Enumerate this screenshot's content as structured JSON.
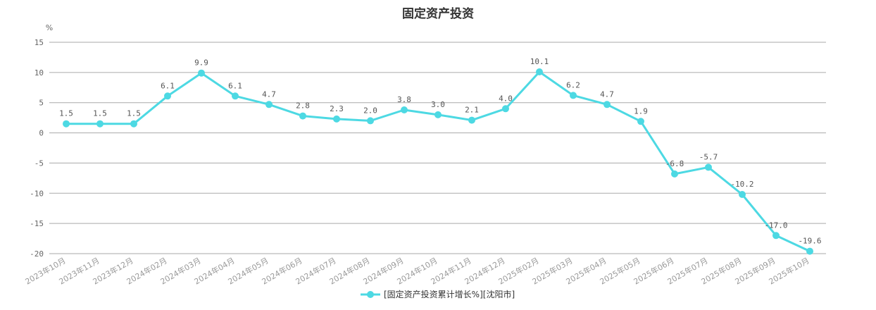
{
  "chart_data": {
    "type": "line",
    "title": "固定资产投资",
    "ylabel": "%",
    "ylim": [
      -20,
      15
    ],
    "yticks": [
      15,
      10,
      5,
      0,
      -5,
      -10,
      -15,
      -20
    ],
    "grid": true,
    "legend_position": "bottom",
    "categories": [
      "2023年10月",
      "2023年11月",
      "2023年12月",
      "2024年02月",
      "2024年03月",
      "2024年04月",
      "2024年05月",
      "2024年06月",
      "2024年07月",
      "2024年08月",
      "2024年09月",
      "2024年10月",
      "2024年11月",
      "2024年12月",
      "2025年02月",
      "2025年03月",
      "2025年04月",
      "2025年05月",
      "2025年06月",
      "2025年07月",
      "2025年08月",
      "2025年09月",
      "2025年10月"
    ],
    "series": [
      {
        "name": "[固定资产投资累计增长%][沈阳市]",
        "color": "#4dd9e3",
        "values": [
          1.5,
          1.5,
          1.5,
          6.1,
          9.9,
          6.1,
          4.7,
          2.8,
          2.3,
          2.0,
          3.8,
          3.0,
          2.1,
          4.0,
          10.1,
          6.2,
          4.7,
          1.9,
          -6.8,
          -5.7,
          -10.2,
          -17.0,
          -19.6
        ]
      }
    ]
  }
}
